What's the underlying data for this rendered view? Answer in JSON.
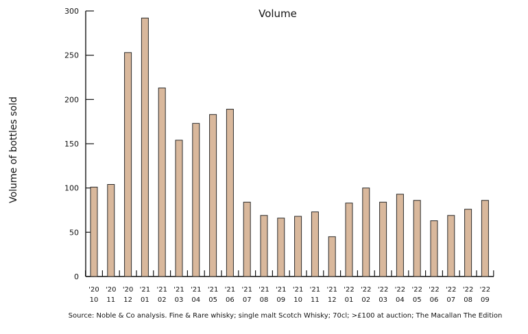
{
  "chart_data": {
    "type": "bar",
    "title": "Volume",
    "ylabel": "Volume of bottles sold",
    "xlabel": "",
    "source": "Source: Noble & Co analysis. Fine & Rare whisky; single malt Scotch Whisky; 70cl; >£100 at auction; The Macallan The Edition",
    "ylim": [
      0,
      300
    ],
    "yticks": [
      "0",
      "50",
      "100",
      "150",
      "200",
      "250",
      "300"
    ],
    "categories": [
      [
        "'20",
        "10"
      ],
      [
        "'20",
        "11"
      ],
      [
        "'20",
        "12"
      ],
      [
        "'21",
        "01"
      ],
      [
        "'21",
        "02"
      ],
      [
        "'21",
        "03"
      ],
      [
        "'21",
        "04"
      ],
      [
        "'21",
        "05"
      ],
      [
        "'21",
        "06"
      ],
      [
        "'21",
        "07"
      ],
      [
        "'21",
        "08"
      ],
      [
        "'21",
        "09"
      ],
      [
        "'21",
        "10"
      ],
      [
        "'21",
        "11"
      ],
      [
        "'21",
        "12"
      ],
      [
        "'22",
        "01"
      ],
      [
        "'22",
        "02"
      ],
      [
        "'22",
        "03"
      ],
      [
        "'22",
        "04"
      ],
      [
        "'22",
        "05"
      ],
      [
        "'22",
        "06"
      ],
      [
        "'22",
        "07"
      ],
      [
        "'22",
        "08"
      ],
      [
        "'22",
        "09"
      ]
    ],
    "values": [
      101,
      104,
      253,
      292,
      213,
      154,
      173,
      183,
      189,
      84,
      69,
      66,
      68,
      73,
      45,
      83,
      100,
      84,
      93,
      86,
      63,
      69,
      76,
      86
    ],
    "colors": {
      "bar": "#d9b89c",
      "bar_stroke": "#2a2a2a",
      "axis": "#111111"
    },
    "grid": false,
    "legend": "none"
  }
}
